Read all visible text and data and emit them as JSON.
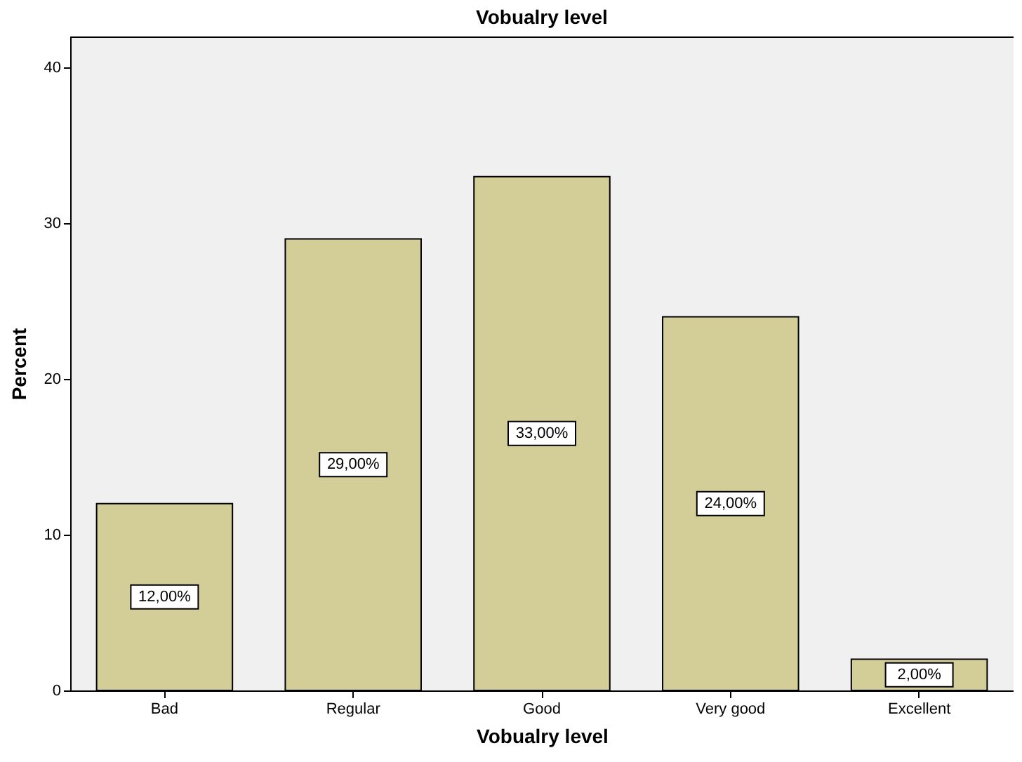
{
  "chart_data": {
    "type": "bar",
    "title": "Vobualry level",
    "xlabel": "Vobualry level",
    "ylabel": "Percent",
    "categories": [
      "Bad",
      "Regular",
      "Good",
      "Very good",
      "Excellent"
    ],
    "values": [
      12,
      29,
      33,
      24,
      2
    ],
    "value_labels": [
      "12,00%",
      "29,00%",
      "33,00%",
      "24,00%",
      "2,00%"
    ],
    "color": "#d3cd98",
    "ylim": [
      0,
      42
    ],
    "yticks": [
      0,
      10,
      20,
      30,
      40
    ],
    "grid": false
  }
}
